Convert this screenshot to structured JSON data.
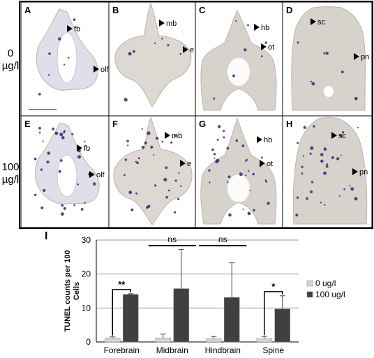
{
  "figure": {
    "row_labels": [
      {
        "line1": "0",
        "line2": "µg/l"
      },
      {
        "line1": "100",
        "line2": "µg/l"
      }
    ],
    "panels": [
      {
        "letter": "A",
        "labels": [
          "fb",
          "olf"
        ]
      },
      {
        "letter": "B",
        "labels": [
          "mb",
          "e"
        ]
      },
      {
        "letter": "C",
        "labels": [
          "hb",
          "ot"
        ]
      },
      {
        "letter": "D",
        "labels": [
          "sc",
          "pn"
        ]
      },
      {
        "letter": "E",
        "labels": [
          "fb",
          "olf"
        ]
      },
      {
        "letter": "F",
        "labels": [
          "mb",
          "e"
        ]
      },
      {
        "letter": "G",
        "labels": [
          "hb",
          "ot"
        ]
      },
      {
        "letter": "H",
        "labels": [
          "sc",
          "pn"
        ]
      }
    ],
    "chart_panel_letter": "I"
  },
  "chart_data": {
    "type": "bar",
    "ylabel": "TUNEL counts per 100 Cells",
    "ylim": [
      0,
      30
    ],
    "yticks": [
      0,
      10,
      20,
      30
    ],
    "grid": true,
    "legend_position": "right",
    "categories": [
      "Forebrain",
      "Midbrain",
      "Hindbrain",
      "Spine"
    ],
    "series": [
      {
        "name": "0 ug/l",
        "color": "#d4d4d4",
        "values": [
          1.2,
          1.2,
          1.0,
          1.0
        ],
        "errors": [
          0.3,
          1.1,
          0.6,
          0.6
        ]
      },
      {
        "name": "100 ug/l",
        "color": "#404040",
        "values": [
          14.0,
          15.7,
          13.1,
          9.7
        ],
        "errors": [
          0.2,
          11.5,
          10.2,
          3.9
        ]
      }
    ],
    "annotations": [
      {
        "category": 0,
        "text": "**"
      },
      {
        "category": 1,
        "text": "ns"
      },
      {
        "category": 2,
        "text": "ns"
      },
      {
        "category": 3,
        "text": "*"
      }
    ]
  }
}
